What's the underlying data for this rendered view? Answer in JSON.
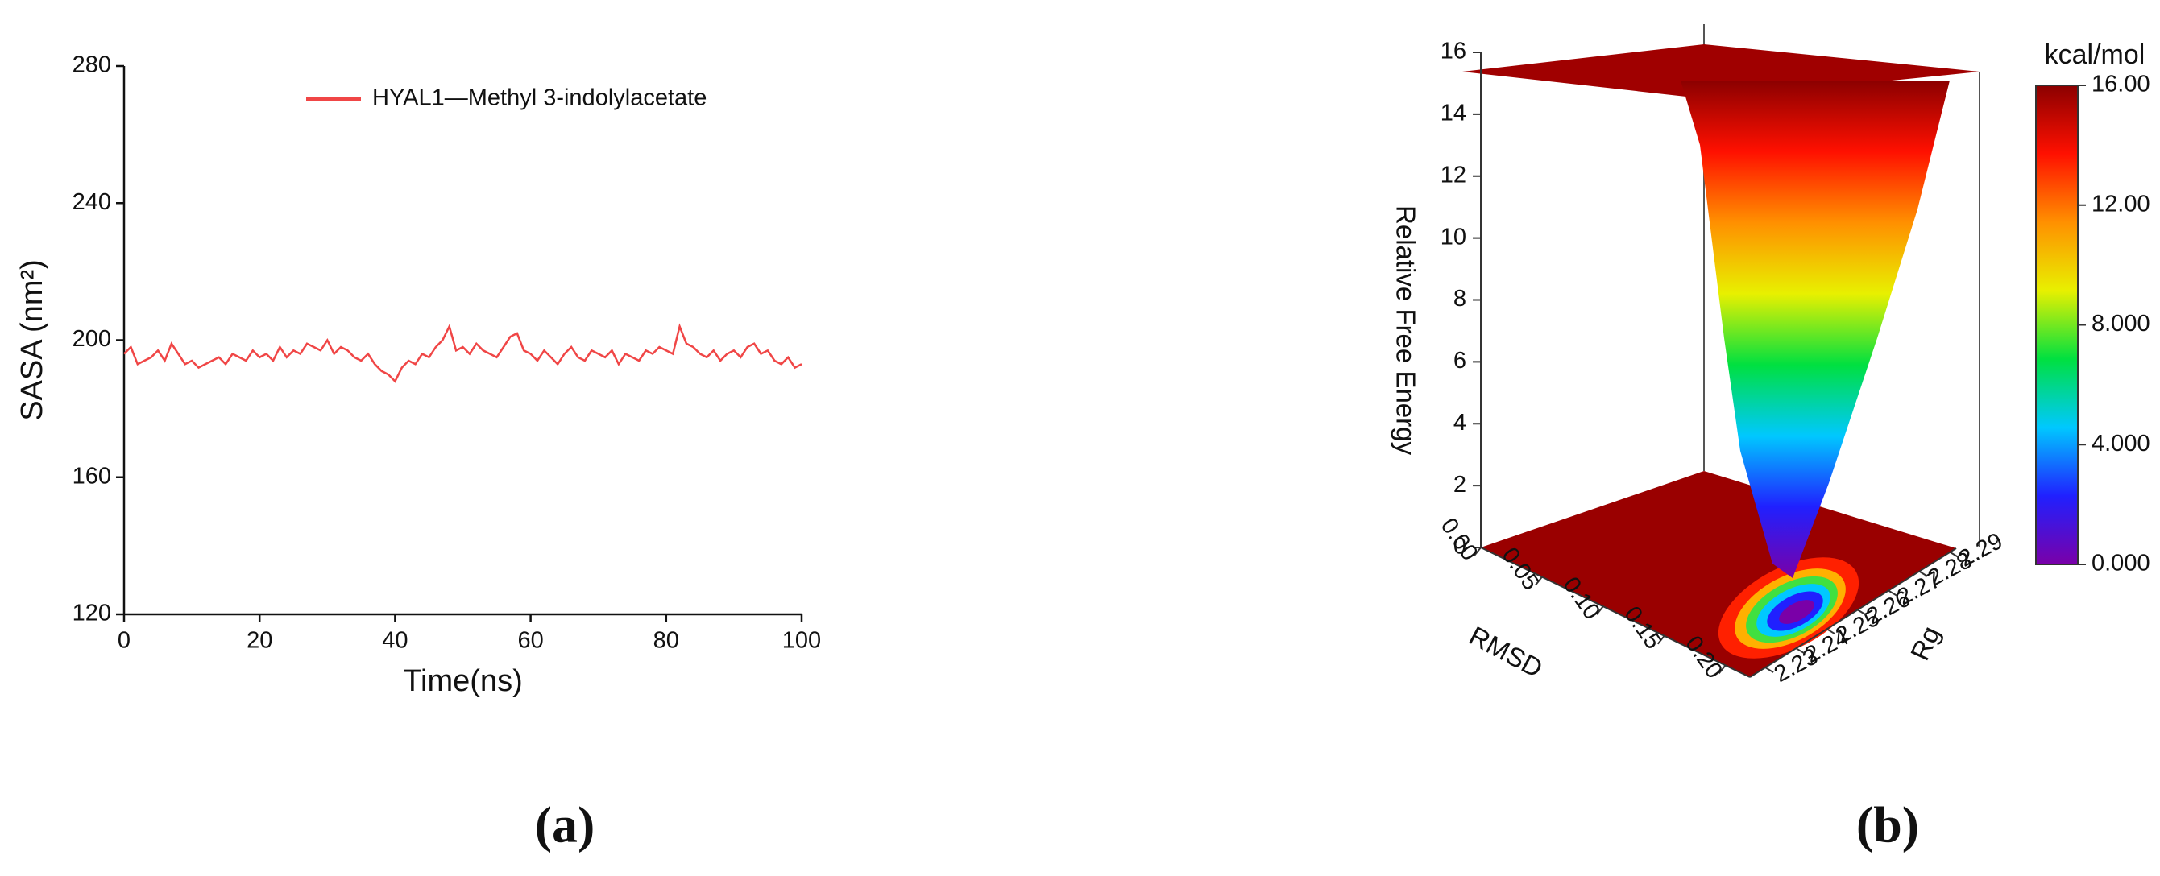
{
  "chart_data": [
    {
      "type": "line",
      "xlabel": "Time(ns)",
      "ylabel": "SASA (nm²)",
      "caption": "(a)",
      "xlim": [
        0,
        100
      ],
      "ylim": [
        120,
        280
      ],
      "xticks": [
        0,
        20,
        40,
        60,
        80,
        100
      ],
      "yticks": [
        120,
        160,
        200,
        240,
        280
      ],
      "legend": "top-right",
      "x": [
        0,
        1,
        2,
        3,
        4,
        5,
        6,
        7,
        8,
        9,
        10,
        11,
        12,
        13,
        14,
        15,
        16,
        17,
        18,
        19,
        20,
        21,
        22,
        23,
        24,
        25,
        26,
        27,
        28,
        29,
        30,
        31,
        32,
        33,
        34,
        35,
        36,
        37,
        38,
        39,
        40,
        41,
        42,
        43,
        44,
        45,
        46,
        47,
        48,
        49,
        50,
        51,
        52,
        53,
        54,
        55,
        56,
        57,
        58,
        59,
        60,
        61,
        62,
        63,
        64,
        65,
        66,
        67,
        68,
        69,
        70,
        71,
        72,
        73,
        74,
        75,
        76,
        77,
        78,
        79,
        80,
        81,
        82,
        83,
        84,
        85,
        86,
        87,
        88,
        89,
        90,
        91,
        92,
        93,
        94,
        95,
        96,
        97,
        98,
        99,
        100
      ],
      "series": [
        {
          "name": "HYAL1—Methyl 3-indolylacetate",
          "color": "#f04646",
          "values": [
            196,
            198,
            193,
            194,
            195,
            197,
            194,
            199,
            196,
            193,
            194,
            192,
            193,
            194,
            195,
            193,
            196,
            195,
            194,
            197,
            195,
            196,
            194,
            198,
            195,
            197,
            196,
            199,
            198,
            197,
            200,
            196,
            198,
            197,
            195,
            194,
            196,
            193,
            191,
            190,
            188,
            192,
            194,
            193,
            196,
            195,
            198,
            200,
            204,
            197,
            198,
            196,
            199,
            197,
            196,
            195,
            198,
            201,
            202,
            197,
            196,
            194,
            197,
            195,
            193,
            196,
            198,
            195,
            194,
            197,
            196,
            195,
            197,
            193,
            196,
            195,
            194,
            197,
            196,
            198,
            197,
            196,
            204,
            199,
            198,
            196,
            195,
            197,
            194,
            196,
            197,
            195,
            198,
            199,
            196,
            197,
            194,
            193,
            195,
            192,
            193
          ]
        }
      ]
    },
    {
      "type": "surface3d",
      "xlabel": "RMSD",
      "ylabel": "Rg",
      "zlabel": "Relative Free Energy",
      "caption": "(b)",
      "xlim": [
        0,
        0.22
      ],
      "xticks": [
        {
          "value": 0,
          "label": "0.00"
        },
        0.05,
        {
          "value": 0.1,
          "label": "0.10"
        },
        0.15,
        {
          "value": 0.2,
          "label": "0.20"
        }
      ],
      "ylim": [
        2.225,
        2.292
      ],
      "yticks": [
        2.23,
        2.24,
        2.25,
        2.26,
        2.27,
        2.28,
        2.29
      ],
      "zlim": [
        0,
        16
      ],
      "zticks": [
        0,
        2,
        4,
        6,
        8,
        10,
        12,
        14,
        16
      ],
      "colorbar": {
        "title": "kcal/mol",
        "lim": [
          0,
          16
        ],
        "ticks": [
          {
            "value": 0,
            "label": "0.000"
          },
          {
            "value": 4,
            "label": "4.000"
          },
          {
            "value": 8,
            "label": "8.000"
          },
          {
            "value": 12,
            "label": "12.00"
          },
          {
            "value": 16,
            "label": "16.00"
          }
        ],
        "colorscale": [
          "#7a00a8",
          "#2020ff",
          "#00c8ff",
          "#00e040",
          "#e8f000",
          "#ff9000",
          "#ff1000",
          "#8b0000"
        ]
      }
    }
  ]
}
